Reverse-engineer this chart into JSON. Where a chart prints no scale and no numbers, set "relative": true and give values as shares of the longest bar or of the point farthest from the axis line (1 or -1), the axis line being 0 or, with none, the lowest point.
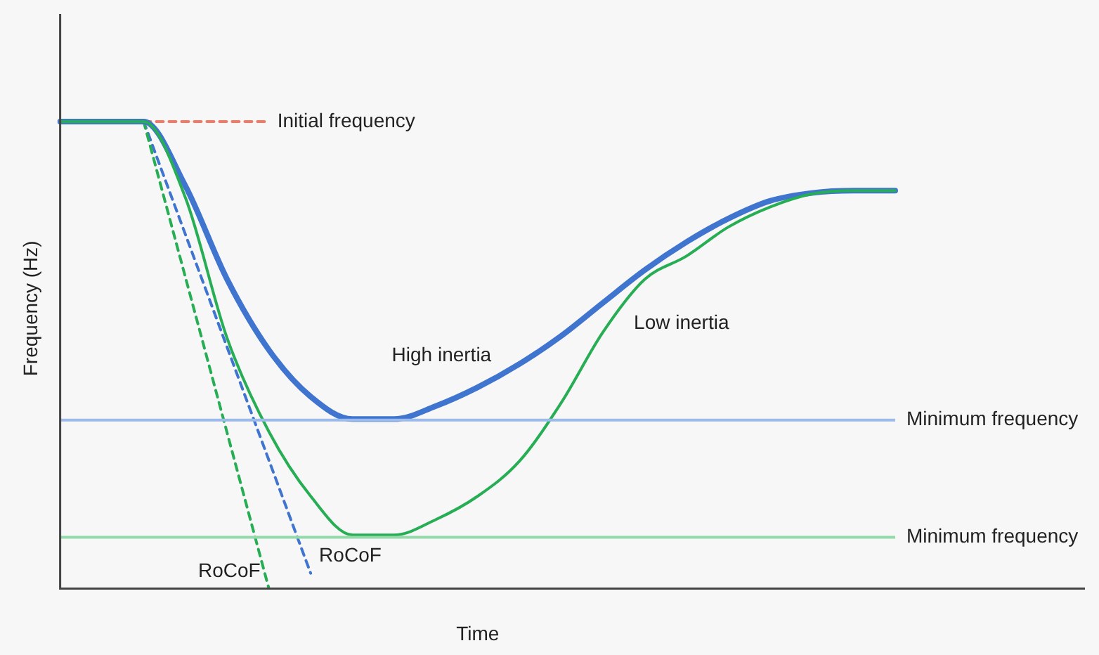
{
  "chart_data": {
    "type": "line",
    "relative": true,
    "xlabel": "Time",
    "ylabel": "Frequency (Hz)",
    "categories": [
      null,
      null,
      null,
      null,
      null,
      null,
      null,
      null,
      null,
      null,
      null,
      null,
      null,
      null,
      null,
      null,
      null,
      null,
      null,
      null,
      null
    ],
    "series": [
      {
        "name": "High inertia",
        "color": "#3f74cf",
        "line_style": "solid",
        "values": [
          1,
          1,
          1,
          0.862,
          0.662,
          0.511,
          0.411,
          0.363,
          0.363,
          0.391,
          0.431,
          0.481,
          0.541,
          0.612,
          0.682,
          0.742,
          0.792,
          0.83,
          0.847,
          0.852,
          0.852
        ]
      },
      {
        "name": "Low inertia",
        "color": "#27ae55",
        "line_style": "solid",
        "values": [
          1,
          1,
          1,
          0.837,
          0.536,
          0.336,
          0.198,
          0.115,
          0.115,
          0.148,
          0.198,
          0.273,
          0.398,
          0.549,
          0.662,
          0.712,
          0.774,
          0.817,
          0.845,
          0.852,
          0.852
        ]
      },
      {
        "name": "Initial frequency",
        "color": "#f07a66",
        "line_style": "dashed",
        "values": [
          null,
          null,
          1,
          1,
          1,
          1,
          null,
          null,
          null,
          null,
          null,
          null,
          null,
          null,
          null,
          null,
          null,
          null,
          null,
          null,
          null
        ]
      },
      {
        "name": "RoCoF",
        "color": "#27ae55",
        "line_style": "dashed",
        "values": [
          null,
          null,
          1,
          null,
          null,
          0,
          null,
          null,
          null,
          null,
          null,
          null,
          null,
          null,
          null,
          null,
          null,
          null,
          null,
          null,
          null
        ]
      },
      {
        "name": "RoCoF",
        "color": "#3f74cf",
        "line_style": "dashed",
        "values": [
          null,
          null,
          1,
          null,
          null,
          null,
          0.033,
          null,
          null,
          null,
          null,
          null,
          null,
          null,
          null,
          null,
          null,
          null,
          null,
          null,
          null
        ]
      }
    ],
    "ref_lines": [
      {
        "axis": "y",
        "value": 0.361,
        "label": "Minimum frequency",
        "color": "#9dbbea"
      },
      {
        "axis": "y",
        "value": 0.11,
        "label": "Minimum frequency",
        "color": "#93d9aa"
      }
    ],
    "grid": false,
    "legend": false,
    "marker": "none"
  }
}
